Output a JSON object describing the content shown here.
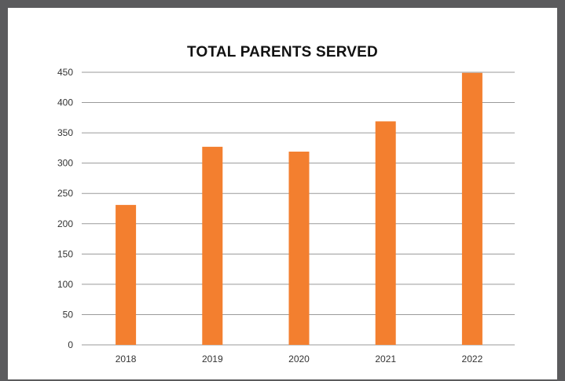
{
  "chart_data": {
    "type": "bar",
    "title": "TOTAL PARENTS SERVED",
    "xlabel": "",
    "ylabel": "",
    "categories": [
      "2018",
      "2019",
      "2020",
      "2021",
      "2022"
    ],
    "values": [
      231,
      327,
      319,
      369,
      449
    ],
    "ylim": [
      0,
      450
    ],
    "yticks": [
      "0",
      "50",
      "100",
      "150",
      "200",
      "250",
      "300",
      "350",
      "400",
      "450"
    ],
    "grid": true,
    "legend": "none",
    "bar_color": "#f37f2f",
    "grid_color": "#9a9a9a",
    "frame_color": "#5b5b5d"
  }
}
